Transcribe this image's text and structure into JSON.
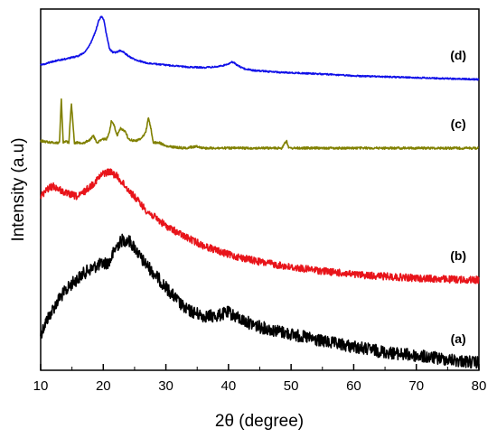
{
  "chart_data": {
    "type": "line",
    "title": "",
    "xlabel": "2θ (degree)",
    "ylabel": "Intensity (a.u)",
    "xlim": [
      10,
      80
    ],
    "xticks": [
      10,
      20,
      30,
      40,
      50,
      60,
      70,
      80
    ],
    "y_tick_labels": "none",
    "grid": false,
    "legend": "none (series labels placed at right end of each curve)",
    "series": [
      {
        "name": "(a)",
        "color": "#000000",
        "noise": 0.035,
        "x": [
          10,
          11,
          13,
          15,
          17,
          19,
          21,
          22,
          23,
          24,
          25,
          26,
          28,
          30,
          33,
          36,
          38,
          40,
          42,
          45,
          50,
          55,
          60,
          65,
          70,
          75,
          80
        ],
        "y": [
          0.9,
          0.86,
          0.8,
          0.76,
          0.73,
          0.71,
          0.7,
          0.66,
          0.64,
          0.64,
          0.66,
          0.69,
          0.73,
          0.77,
          0.83,
          0.85,
          0.85,
          0.84,
          0.86,
          0.88,
          0.9,
          0.92,
          0.935,
          0.95,
          0.96,
          0.97,
          0.98
        ]
      },
      {
        "name": "(b)",
        "color": "#e8141a",
        "noise": 0.02,
        "x": [
          10,
          11,
          12,
          14,
          16,
          18,
          20,
          21,
          22,
          23,
          25,
          27,
          30,
          33,
          36,
          40,
          45,
          50,
          55,
          60,
          65,
          70,
          75,
          80
        ],
        "y": [
          0.52,
          0.5,
          0.49,
          0.51,
          0.52,
          0.49,
          0.455,
          0.45,
          0.46,
          0.48,
          0.52,
          0.56,
          0.6,
          0.63,
          0.655,
          0.68,
          0.7,
          0.715,
          0.725,
          0.735,
          0.74,
          0.745,
          0.748,
          0.75
        ]
      },
      {
        "name": "(c)",
        "color": "#808000",
        "noise": 0.006,
        "x": [
          10,
          12,
          13,
          13.3,
          13.6,
          14,
          14.5,
          14.9,
          15.4,
          16,
          17,
          18,
          18.4,
          19,
          20,
          20.5,
          21,
          21.3,
          21.7,
          22.2,
          22.8,
          23.2,
          23.6,
          24,
          25,
          26,
          26.8,
          27.2,
          27.6,
          28,
          29,
          30,
          33,
          35,
          36,
          40,
          45,
          48.5,
          49,
          49.3,
          49.6,
          50,
          55,
          60,
          70,
          80
        ],
        "y": [
          0.365,
          0.37,
          0.37,
          0.25,
          0.37,
          0.365,
          0.37,
          0.26,
          0.37,
          0.37,
          0.37,
          0.36,
          0.35,
          0.37,
          0.36,
          0.36,
          0.34,
          0.31,
          0.32,
          0.35,
          0.33,
          0.335,
          0.34,
          0.36,
          0.365,
          0.36,
          0.34,
          0.3,
          0.33,
          0.37,
          0.37,
          0.38,
          0.385,
          0.38,
          0.385,
          0.385,
          0.385,
          0.385,
          0.37,
          0.365,
          0.385,
          0.385,
          0.385,
          0.385,
          0.385,
          0.385
        ]
      },
      {
        "name": "(d)",
        "color": "#1010e8",
        "noise": 0.004,
        "x": [
          10,
          12,
          14,
          16,
          17,
          18,
          18.8,
          19.3,
          19.7,
          20.1,
          20.5,
          21,
          21.5,
          22,
          22.7,
          23.3,
          24,
          25,
          27,
          30,
          33,
          36,
          38,
          39.5,
          40.5,
          41,
          41.5,
          42.5,
          44,
          48,
          55,
          60,
          70,
          80
        ],
        "y": [
          0.155,
          0.145,
          0.138,
          0.13,
          0.12,
          0.095,
          0.06,
          0.03,
          0.02,
          0.03,
          0.07,
          0.11,
          0.12,
          0.12,
          0.115,
          0.12,
          0.13,
          0.14,
          0.15,
          0.155,
          0.16,
          0.162,
          0.16,
          0.155,
          0.147,
          0.15,
          0.157,
          0.165,
          0.17,
          0.175,
          0.18,
          0.185,
          0.19,
          0.195
        ]
      }
    ]
  }
}
